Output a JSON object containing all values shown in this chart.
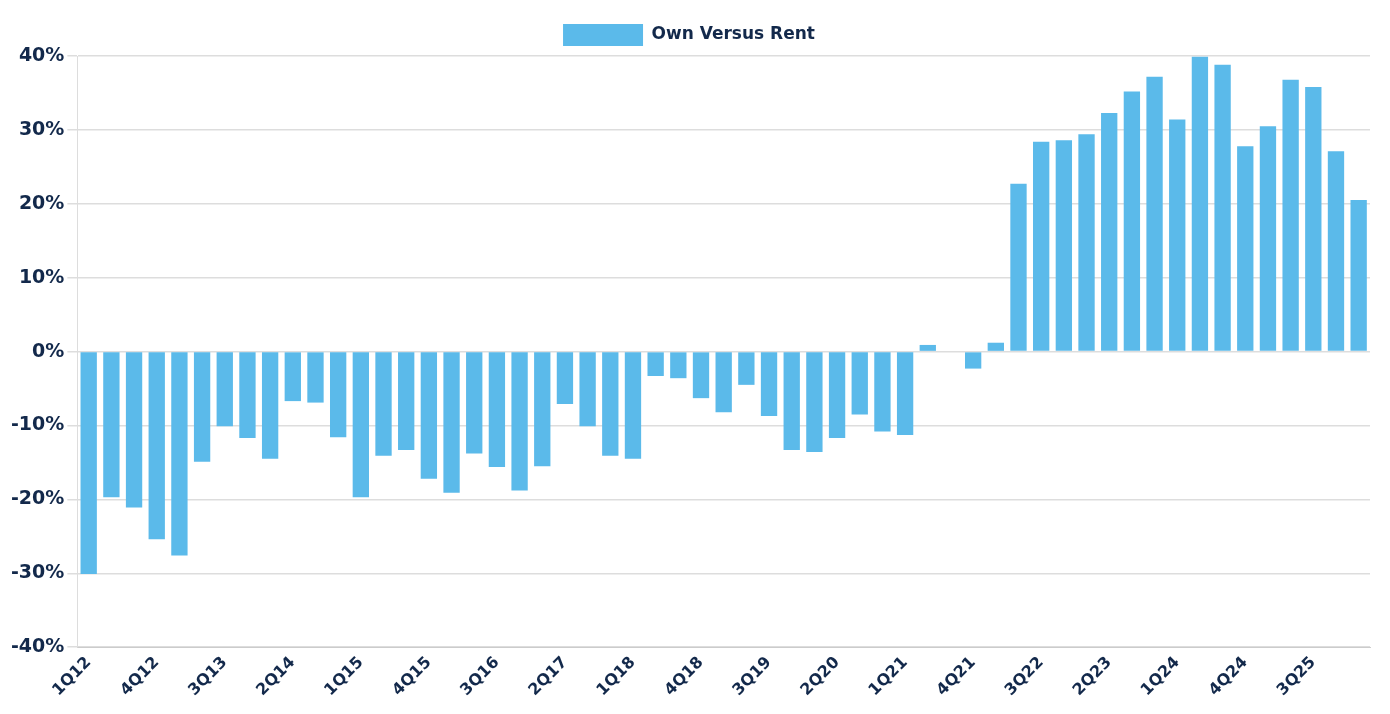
{
  "chart_data": {
    "type": "bar",
    "categories": [
      "1Q12",
      null,
      null,
      "4Q12",
      null,
      null,
      "3Q13",
      null,
      null,
      "2Q14",
      null,
      null,
      "1Q15",
      null,
      null,
      "4Q15",
      null,
      null,
      "3Q16",
      null,
      null,
      "2Q17",
      null,
      null,
      "1Q18",
      null,
      null,
      "4Q18",
      null,
      null,
      "3Q19",
      null,
      null,
      "2Q20",
      null,
      null,
      "1Q21",
      null,
      null,
      "4Q21",
      null,
      null,
      "3Q22",
      null,
      null,
      "2Q23",
      null,
      null,
      "1Q24",
      null,
      null,
      "4Q24",
      null,
      null,
      "3Q25",
      null,
      null
    ],
    "series": [
      {
        "name": "Own Versus Rent",
        "color": "#5bbaea",
        "values": [
          -30.1,
          -19.7,
          -21.1,
          -25.4,
          -27.6,
          -14.9,
          -10.1,
          -11.7,
          -14.5,
          -6.7,
          -6.9,
          -11.6,
          -19.7,
          -14.1,
          -13.3,
          -17.2,
          -19.1,
          -13.8,
          -15.6,
          -18.8,
          -15.5,
          -7.1,
          -10.1,
          -14.1,
          -14.5,
          -3.3,
          -3.6,
          -6.3,
          -8.2,
          -4.5,
          -8.7,
          -13.3,
          -13.6,
          -11.7,
          -8.5,
          -10.8,
          -11.3,
          0.9,
          0,
          -2.3,
          1.2,
          22.7,
          28.4,
          28.6,
          29.4,
          32.3,
          35.2,
          37.2,
          31.4,
          39.9,
          38.8,
          27.8,
          30.5,
          36.8,
          35.8,
          27.1,
          20.5
        ]
      }
    ],
    "ylim": [
      -40,
      40
    ],
    "yticks": [
      {
        "value": -40,
        "label": "-40%"
      },
      {
        "value": -30,
        "label": "-30%"
      },
      {
        "value": -20,
        "label": "-20%"
      },
      {
        "value": -10,
        "label": "-10%"
      },
      {
        "value": 0,
        "label": "0%"
      },
      {
        "value": 10,
        "label": "10%"
      },
      {
        "value": 20,
        "label": "20%"
      },
      {
        "value": 30,
        "label": "30%"
      },
      {
        "value": 40,
        "label": "40%"
      }
    ],
    "grid": "y",
    "legend": "top"
  }
}
